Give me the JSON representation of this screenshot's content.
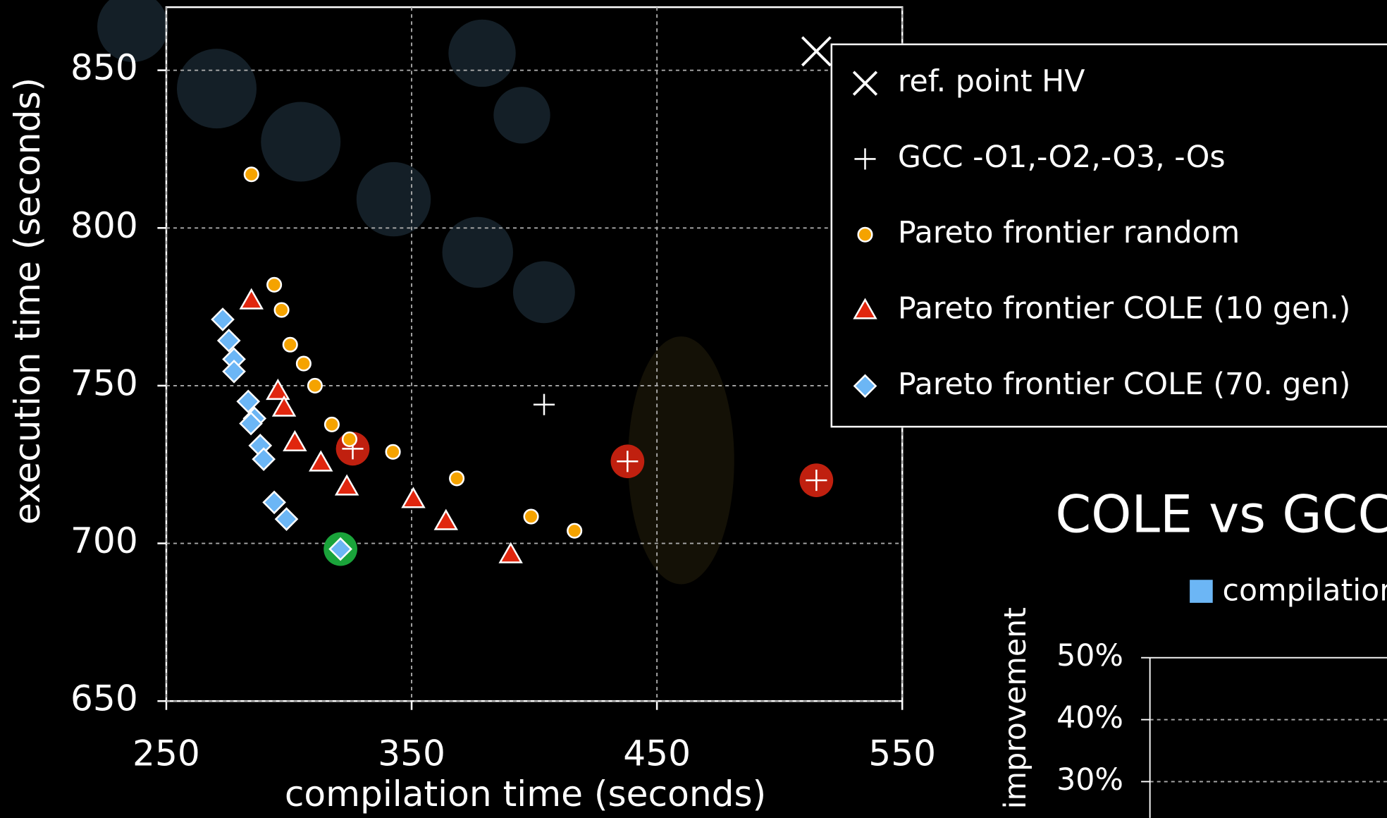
{
  "chart_data": [
    {
      "type": "scatter",
      "xlabel": "compilation time (seconds)",
      "ylabel": "execution time (seconds)",
      "xlim": [
        250,
        550
      ],
      "ylim": [
        650,
        870
      ],
      "xticks": [
        250,
        350,
        450,
        550
      ],
      "yticks": [
        650,
        700,
        750,
        800,
        850
      ],
      "grid": true,
      "legend": "upper right",
      "series": [
        {
          "name": "ref. point HV",
          "marker": "x",
          "color": "#ffffff",
          "x": [
            515
          ],
          "y": [
            856
          ]
        },
        {
          "name": "GCC -O1,-O2,-O3, -Os",
          "marker": "plus",
          "color": "#ffffff",
          "x": [
            404,
            326,
            438,
            515
          ],
          "y": [
            744,
            730,
            726,
            720
          ],
          "highlights": [
            1,
            2,
            3
          ],
          "highlight_color": "#c0200f"
        },
        {
          "name": "Pareto frontier random",
          "marker": "circle",
          "color": "#f5a300",
          "x": [
            284.7,
            294,
            297,
            300.5,
            306,
            310.6,
            317.5,
            324.7,
            342.4,
            368.4,
            398.7,
            416.4
          ],
          "y": [
            817,
            782,
            774,
            763,
            757,
            750,
            737.7,
            733,
            729,
            720.6,
            708.5,
            704
          ]
        },
        {
          "name": "Pareto frontier COLE (10 gen.)",
          "marker": "triangle",
          "color": "#e0260e",
          "x": [
            284.7,
            295.5,
            298,
            302.4,
            313,
            323.6,
            350.7,
            364,
            390.4
          ],
          "y": [
            777,
            748.3,
            743,
            732,
            725.6,
            718,
            714,
            707,
            696.5
          ]
        },
        {
          "name": "Pareto frontier COLE (70. gen)",
          "marker": "diamond",
          "color": "#6cb6f5",
          "x": [
            273,
            275.5,
            277.6,
            277.6,
            283.4,
            286,
            284.5,
            288.3,
            289.7,
            294,
            299,
            321
          ],
          "y": [
            771,
            764.3,
            758.4,
            754.5,
            745,
            739.6,
            738,
            731,
            726.7,
            713,
            707.7,
            698.2
          ],
          "highlights": [
            11
          ],
          "highlight_color": "#1aa33a"
        }
      ]
    },
    {
      "type": "bar",
      "title": "COLE vs GCC",
      "ylabel": "improvement",
      "ylim": [
        0,
        50
      ],
      "yticks": [
        {
          "value": 30,
          "label": "30%"
        },
        {
          "value": 40,
          "label": "40%"
        },
        {
          "value": 50,
          "label": "50%"
        }
      ],
      "grid": true,
      "series": [
        {
          "name": "compilation",
          "color": "#6cb6f5",
          "values": []
        }
      ]
    }
  ]
}
